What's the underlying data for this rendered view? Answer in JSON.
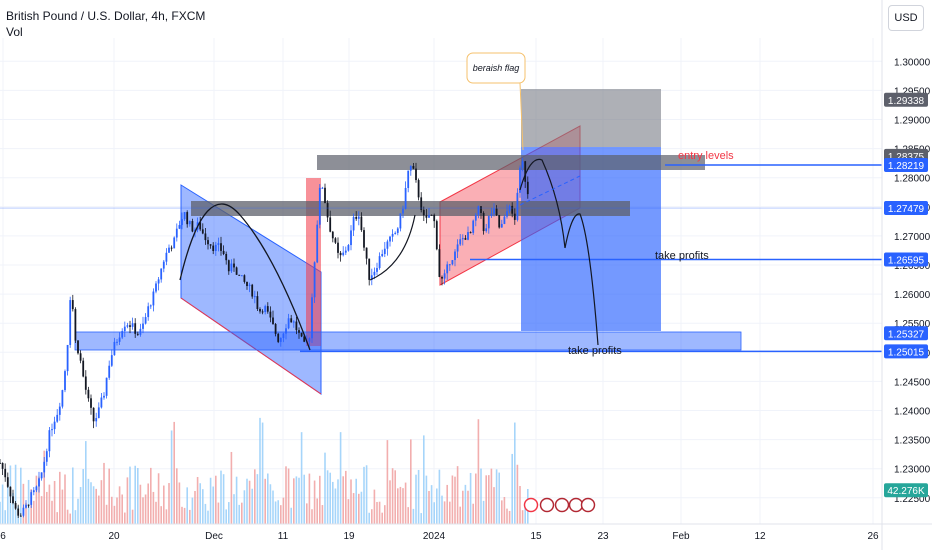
{
  "header": {
    "symbol_title": "British Pound / U.S. Dollar, 4h, FXCM",
    "indicator": "Vol",
    "currency_button": "USD"
  },
  "chart_data": {
    "type": "candlestick",
    "ylim": [
      1.2205,
      1.304
    ],
    "y_ticks": [
      "1.30000",
      "1.29500",
      "1.29000",
      "1.28500",
      "1.28000",
      "1.27500",
      "1.27000",
      "1.26500",
      "1.26000",
      "1.25500",
      "1.25000",
      "1.24500",
      "1.24000",
      "1.23500",
      "1.23000",
      "1.22500"
    ],
    "x_ticks": [
      "6",
      "20",
      "Dec",
      "11",
      "19",
      "2024",
      "15",
      "23",
      "Feb",
      "12",
      "26"
    ],
    "price_labels": [
      {
        "value": "1.29338",
        "price": 1.29338,
        "color": "#5d606b"
      },
      {
        "value": "1.28375",
        "price": 1.28375,
        "color": "#5d606b"
      },
      {
        "value": "1.28219",
        "price": 1.28219,
        "color": "#2962ff"
      },
      {
        "value": "1.27479",
        "price": 1.27479,
        "color": "#2962ff"
      },
      {
        "value": "1.26595",
        "price": 1.26595,
        "color": "#2962ff"
      },
      {
        "value": "1.25327",
        "price": 1.25327,
        "color": "#2962ff"
      },
      {
        "value": "1.25015",
        "price": 1.25015,
        "color": "#2962ff"
      },
      {
        "value": "42.276K",
        "price": 1.2263,
        "color": "#26a69a"
      }
    ],
    "annotations": {
      "entry": "entry levels",
      "take_profit_1": "take profits",
      "take_profit_2": "take profits",
      "flag_note": "beraish flag"
    },
    "colors": {
      "up": "#2962ff",
      "down": "#131722",
      "vol_up": "#ef9a9a",
      "vol_down": "#90caf9",
      "accent": "#2962ff",
      "warn": "#f23645"
    },
    "anchors": [
      [
        0,
        1.231
      ],
      [
        5,
        1.229
      ],
      [
        10,
        1.226
      ],
      [
        15,
        1.223
      ],
      [
        20,
        1.222
      ],
      [
        25,
        1.223
      ],
      [
        30,
        1.225
      ],
      [
        35,
        1.226
      ],
      [
        40,
        1.228
      ],
      [
        45,
        1.232
      ],
      [
        48,
        1.235
      ],
      [
        53,
        1.238
      ],
      [
        58,
        1.24
      ],
      [
        63,
        1.244
      ],
      [
        67,
        1.25
      ],
      [
        71,
        1.262
      ],
      [
        75,
        1.252
      ],
      [
        79,
        1.25
      ],
      [
        84,
        1.245
      ],
      [
        89,
        1.241
      ],
      [
        94,
        1.238
      ],
      [
        99,
        1.24
      ],
      [
        104,
        1.243
      ],
      [
        109,
        1.248
      ],
      [
        114,
        1.251
      ],
      [
        119,
        1.253
      ],
      [
        124,
        1.255
      ],
      [
        129,
        1.255
      ],
      [
        134,
        1.254
      ],
      [
        139,
        1.253
      ],
      [
        144,
        1.255
      ],
      [
        149,
        1.258
      ],
      [
        154,
        1.26
      ],
      [
        159,
        1.263
      ],
      [
        164,
        1.266
      ],
      [
        169,
        1.268
      ],
      [
        174,
        1.269
      ],
      [
        179,
        1.272
      ],
      [
        184,
        1.274
      ],
      [
        189,
        1.272
      ],
      [
        194,
        1.271
      ],
      [
        199,
        1.272
      ],
      [
        204,
        1.27
      ],
      [
        209,
        1.269
      ],
      [
        214,
        1.268
      ],
      [
        219,
        1.268
      ],
      [
        224,
        1.267
      ],
      [
        229,
        1.264
      ],
      [
        234,
        1.265
      ],
      [
        239,
        1.263
      ],
      [
        244,
        1.262
      ],
      [
        249,
        1.261
      ],
      [
        254,
        1.26
      ],
      [
        259,
        1.257
      ],
      [
        264,
        1.258
      ],
      [
        269,
        1.256
      ],
      [
        274,
        1.254
      ],
      [
        279,
        1.252
      ],
      [
        284,
        1.254
      ],
      [
        289,
        1.256
      ],
      [
        294,
        1.255
      ],
      [
        299,
        1.253
      ],
      [
        304,
        1.251
      ],
      [
        309,
        1.252
      ],
      [
        313,
        1.262
      ],
      [
        317,
        1.272
      ],
      [
        321,
        1.28
      ],
      [
        325,
        1.276
      ],
      [
        329,
        1.272
      ],
      [
        334,
        1.269
      ],
      [
        339,
        1.266
      ],
      [
        344,
        1.267
      ],
      [
        349,
        1.269
      ],
      [
        354,
        1.273
      ],
      [
        359,
        1.274
      ],
      [
        364,
        1.268
      ],
      [
        369,
        1.263
      ],
      [
        374,
        1.264
      ],
      [
        379,
        1.266
      ],
      [
        384,
        1.268
      ],
      [
        389,
        1.269
      ],
      [
        394,
        1.27
      ],
      [
        399,
        1.272
      ],
      [
        404,
        1.276
      ],
      [
        408,
        1.281
      ],
      [
        412,
        1.282
      ],
      [
        416,
        1.279
      ],
      [
        420,
        1.276
      ],
      [
        425,
        1.272
      ],
      [
        430,
        1.274
      ],
      [
        435,
        1.272
      ],
      [
        440,
        1.262
      ],
      [
        445,
        1.263
      ],
      [
        450,
        1.266
      ],
      [
        455,
        1.267
      ],
      [
        460,
        1.269
      ],
      [
        465,
        1.27
      ],
      [
        470,
        1.27
      ],
      [
        475,
        1.273
      ],
      [
        480,
        1.275
      ],
      [
        485,
        1.27
      ],
      [
        490,
        1.274
      ],
      [
        495,
        1.274
      ],
      [
        500,
        1.271
      ],
      [
        505,
        1.273
      ],
      [
        510,
        1.276
      ],
      [
        514,
        1.271
      ],
      [
        518,
        1.279
      ],
      [
        522,
        1.283
      ],
      [
        526,
        1.279
      ],
      [
        530,
        1.276
      ]
    ]
  }
}
